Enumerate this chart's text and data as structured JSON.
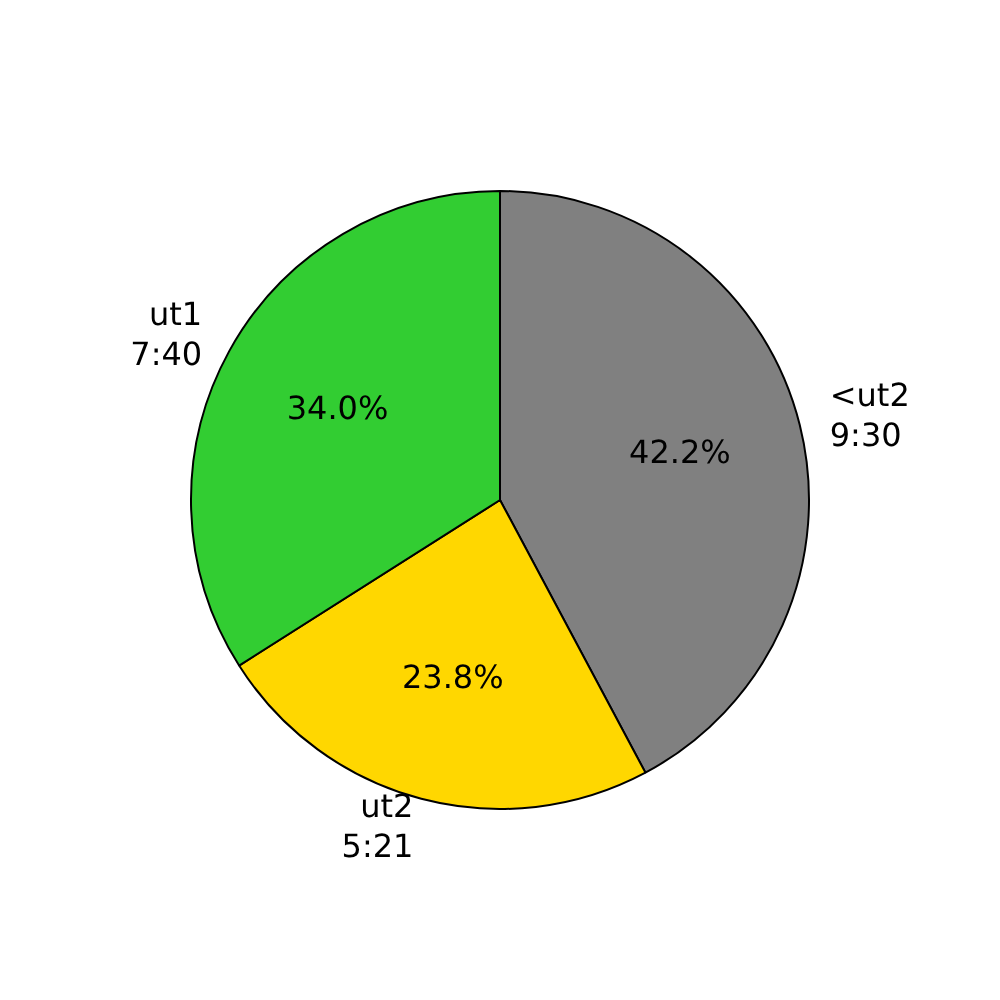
{
  "chart_data": {
    "type": "pie",
    "categories": [
      "<ut2\n9:30",
      "ut2\n5:21",
      "ut1\n7:40"
    ],
    "values": [
      42.2,
      23.8,
      34.0
    ],
    "colors": [
      "#808080",
      "#ffd700",
      "#32cd32"
    ],
    "value_labels": [
      "42.2%",
      "23.8%",
      "34.0%"
    ],
    "legend": false
  }
}
